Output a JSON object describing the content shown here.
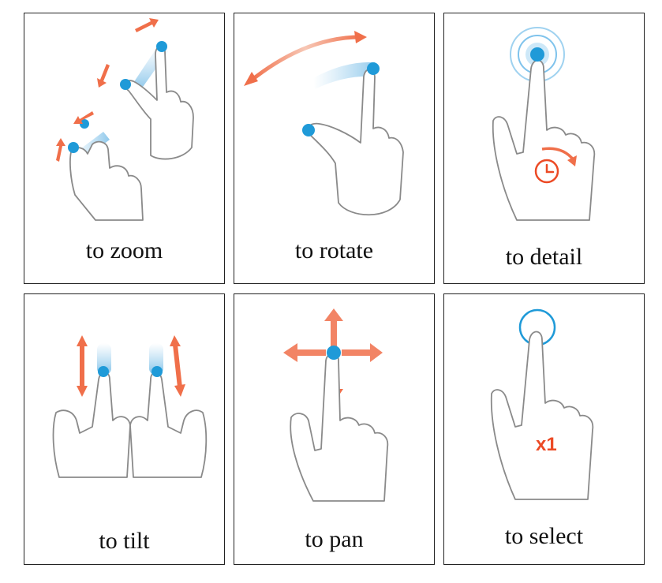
{
  "colors": {
    "accent_blue": "#1f9ad8",
    "accent_orange": "#f06f4a",
    "border": "#222222"
  },
  "panels": [
    {
      "caption": "to zoom",
      "icon": "pinch-zoom-icon"
    },
    {
      "caption": "to rotate",
      "icon": "rotate-gesture-icon"
    },
    {
      "caption": "to detail",
      "icon": "press-hold-icon"
    },
    {
      "caption": "to tilt",
      "icon": "two-finger-tilt-icon"
    },
    {
      "caption": "to pan",
      "icon": "pan-gesture-icon"
    },
    {
      "caption": "to select",
      "icon": "single-tap-icon",
      "badge": "x1"
    }
  ]
}
